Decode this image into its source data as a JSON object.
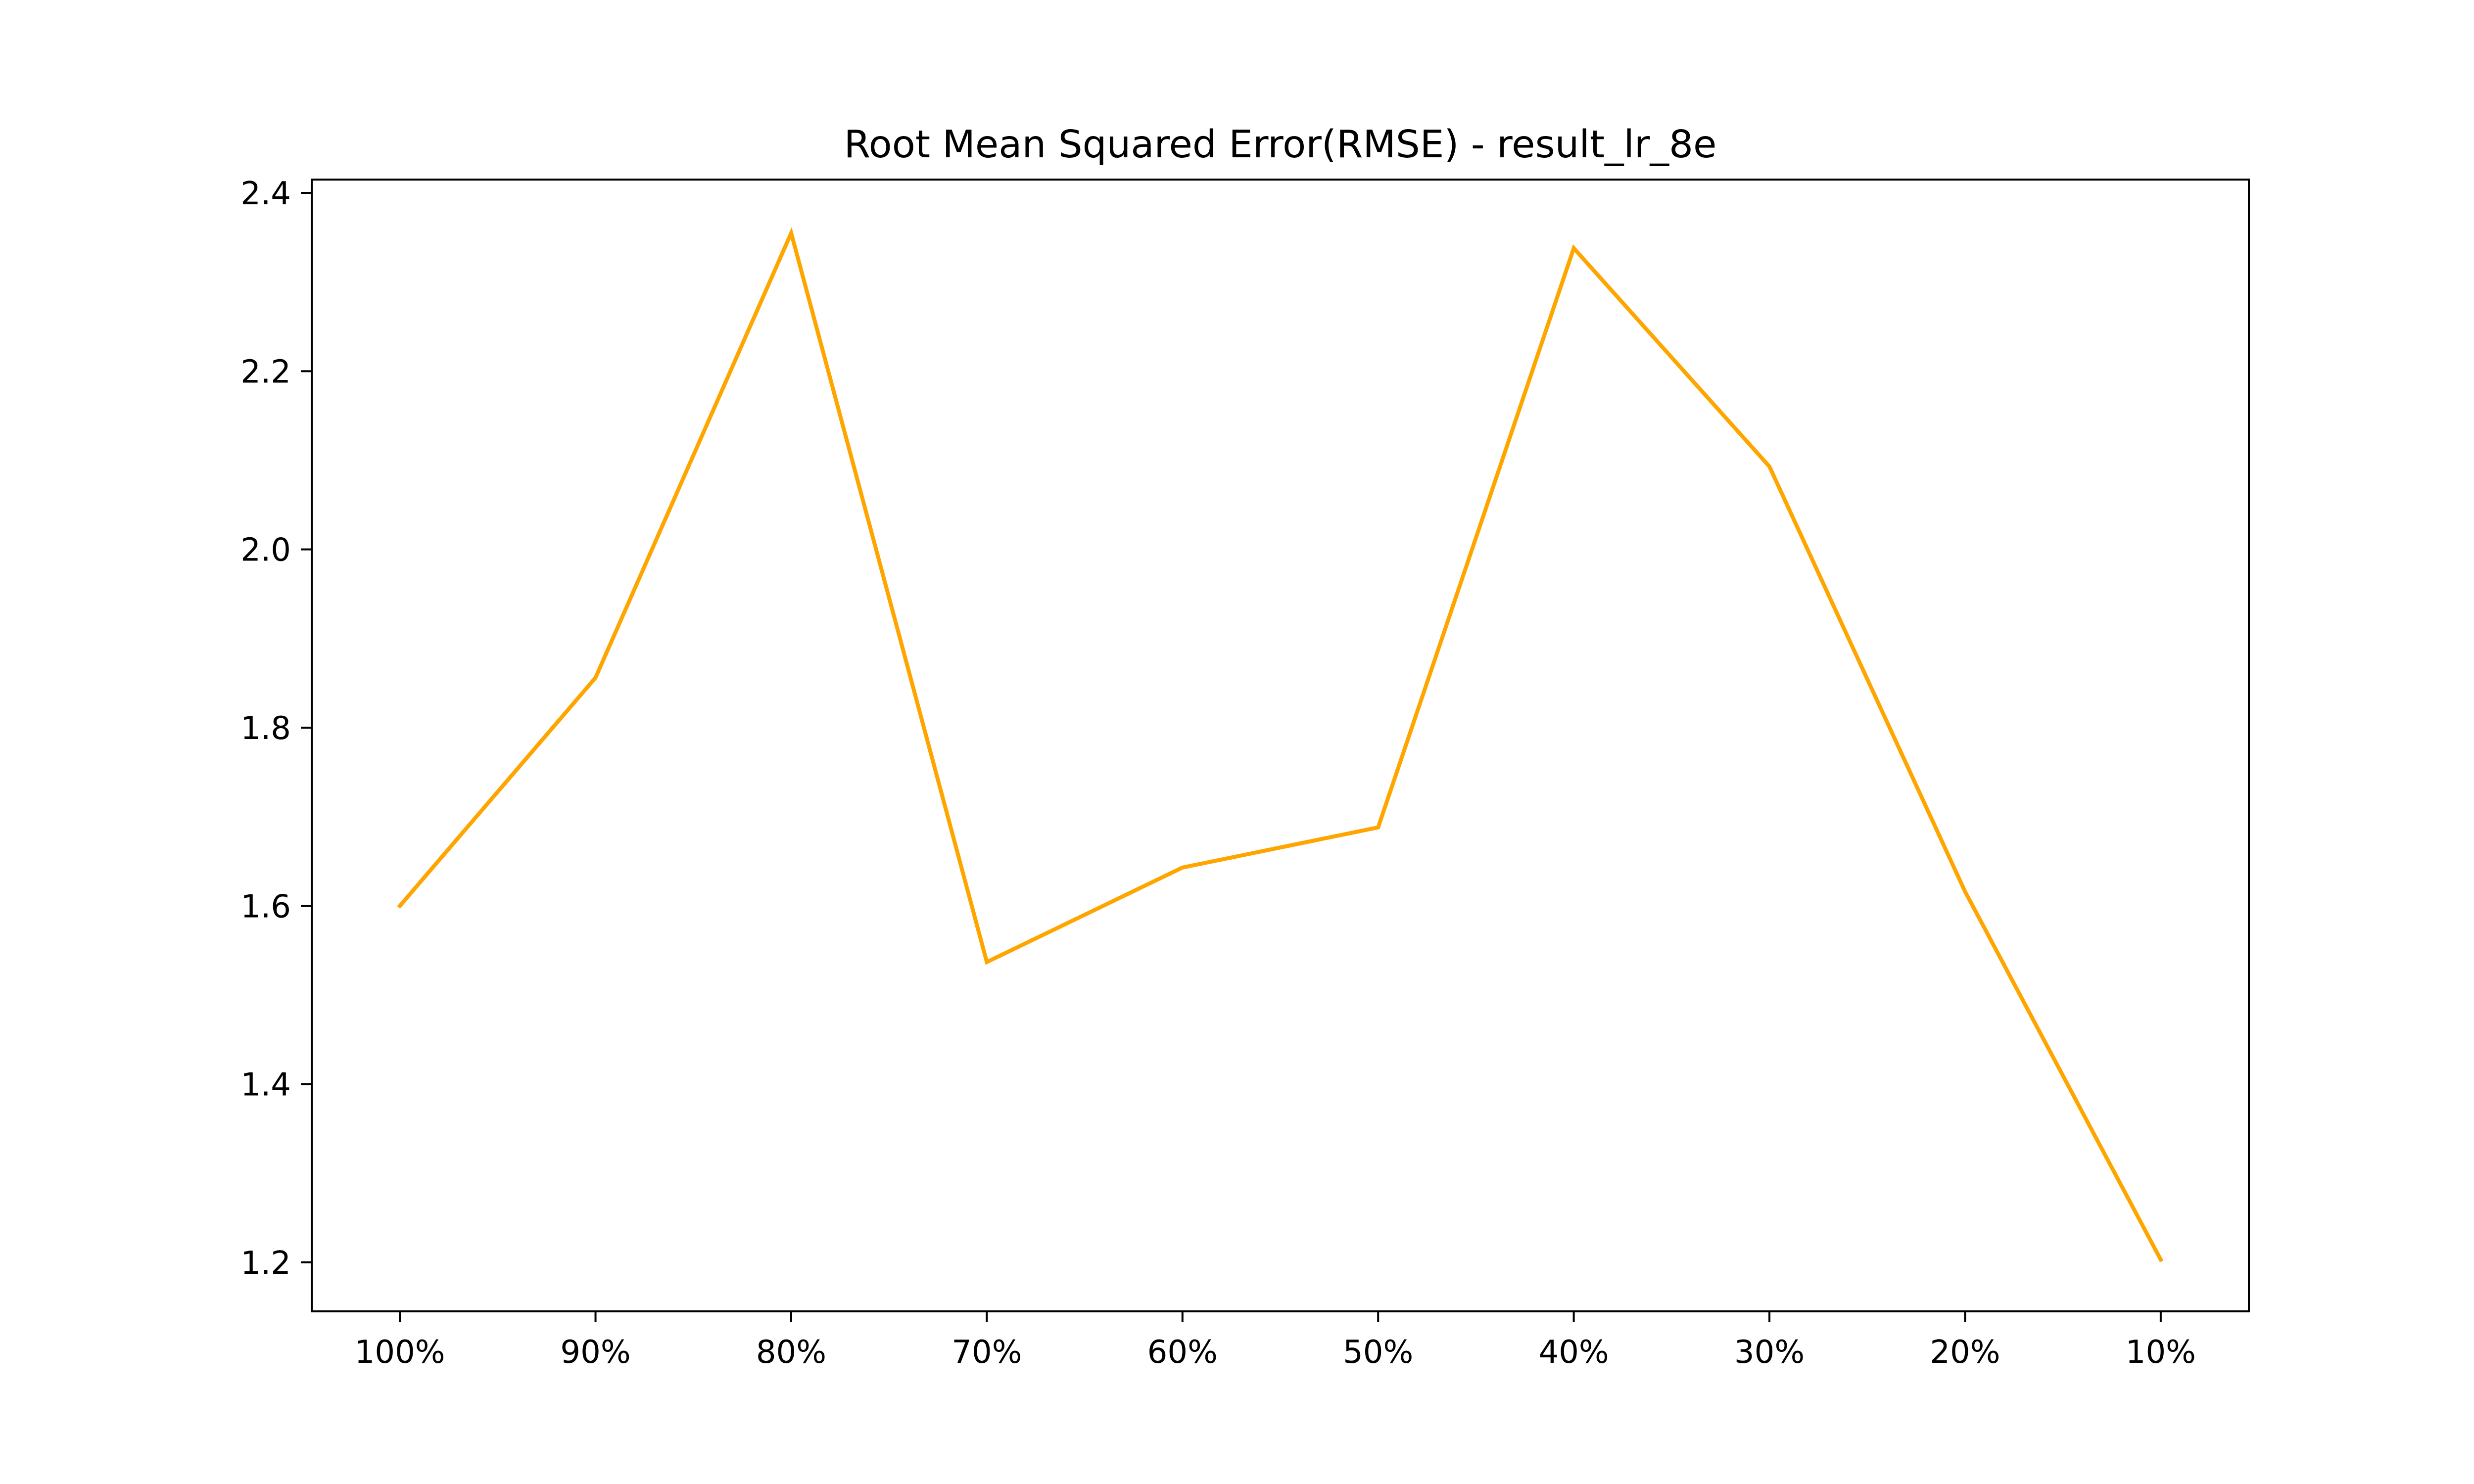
{
  "chart_data": {
    "type": "line",
    "title": "Root Mean Squared Error(RMSE) - result_lr_8e",
    "xlabel": "",
    "ylabel": "",
    "categories": [
      "100%",
      "90%",
      "80%",
      "70%",
      "60%",
      "50%",
      "40%",
      "30%",
      "20%",
      "10%"
    ],
    "series": [
      {
        "values": [
          1.6,
          1.856,
          2.355,
          1.537,
          1.643,
          1.688,
          2.338,
          2.093,
          1.616,
          1.203
        ],
        "color": "#FFA500"
      }
    ],
    "ylim": [
      1.145,
      2.415
    ],
    "yticks": [
      1.2,
      1.4,
      1.6,
      1.8,
      2.0,
      2.2,
      2.4
    ],
    "ytick_labels": [
      "1.2",
      "1.4",
      "1.6",
      "1.8",
      "2.0",
      "2.2",
      "2.4"
    ],
    "grid": false,
    "legend": false
  }
}
